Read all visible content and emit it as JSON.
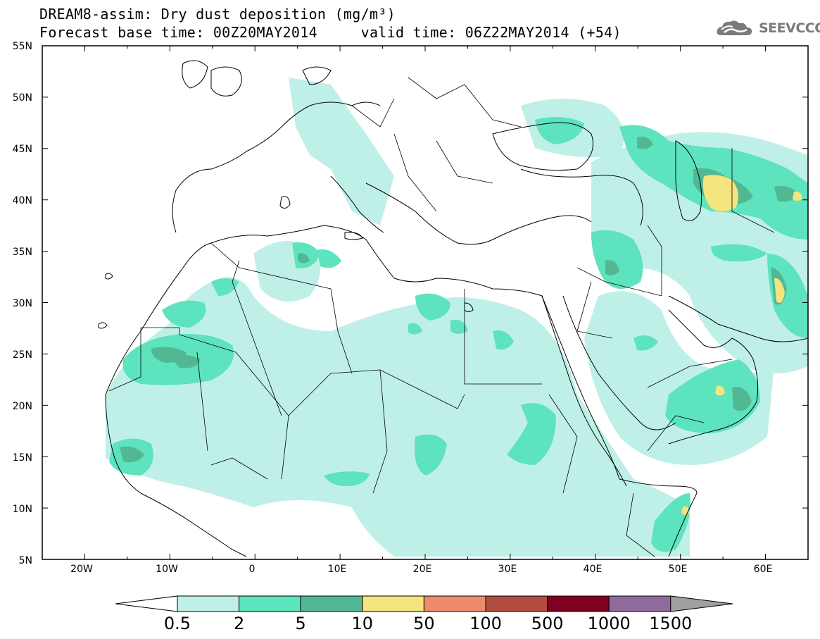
{
  "title": {
    "line1": "DREAM8-assim: Dry dust deposition (mg/m³)",
    "line2": "Forecast base time: 00Z20MAY2014     valid time: 06Z22MAY2014 (+54)"
  },
  "logo": {
    "text": "SEEVCCC",
    "icon": "cloud-logo-icon"
  },
  "map": {
    "lat_labels": [
      "55N",
      "50N",
      "45N",
      "40N",
      "35N",
      "30N",
      "25N",
      "20N",
      "15N",
      "10N",
      "5N"
    ],
    "lon_labels": [
      "20W",
      "10W",
      "0",
      "10E",
      "20E",
      "30E",
      "40E",
      "50E",
      "60E"
    ],
    "lat_range": [
      5,
      55
    ],
    "lon_range": [
      -25,
      65
    ]
  },
  "colorbar": {
    "labels": [
      "0.5",
      "2",
      "5",
      "10",
      "50",
      "100",
      "500",
      "1000",
      "1500"
    ],
    "colors": [
      "#ffffff",
      "#bff0e8",
      "#5de3bd",
      "#52b894",
      "#f5e57e",
      "#eb8c6a",
      "#b04d41",
      "#800020",
      "#8f6a9c",
      "#a0a0a0"
    ]
  },
  "dust_levels": {
    "light": "#bff0e8",
    "medium": "#5de3bd",
    "dark": "#52b894",
    "yellow": "#f5e57e"
  }
}
